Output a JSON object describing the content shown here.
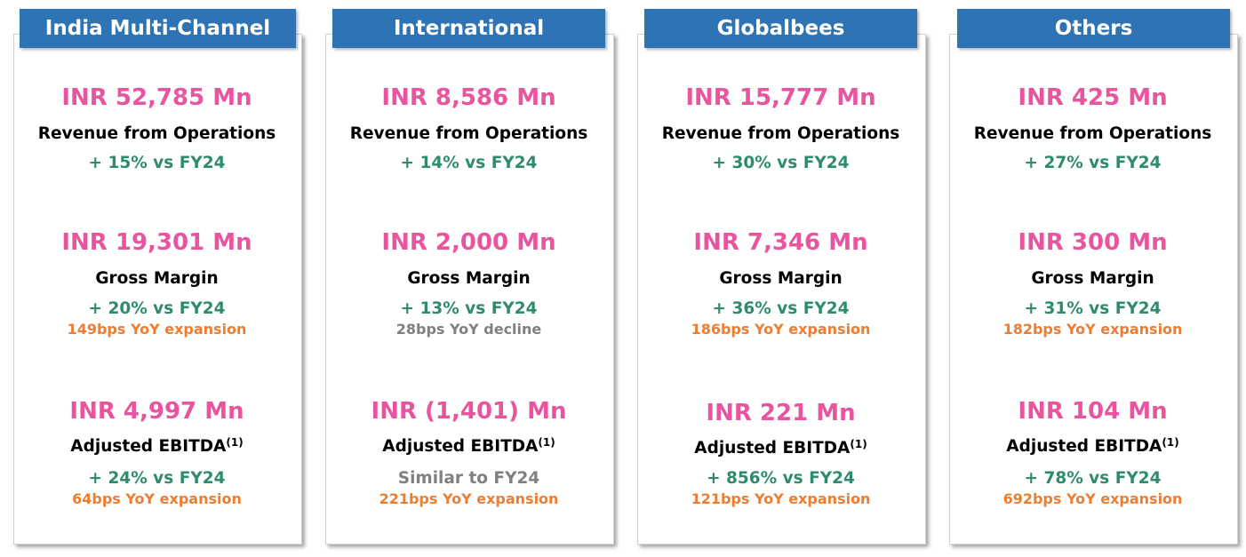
{
  "segments": [
    {
      "title": "India Multi-Channel",
      "revenue": {
        "amount": "INR 52,785 Mn",
        "label": "Revenue from Operations",
        "growth": "+ 15% vs FY24"
      },
      "gross_margin": {
        "amount": "INR 19,301 Mn",
        "label": "Gross Margin",
        "growth": "+ 20% vs FY24",
        "bps": "149bps YoY expansion",
        "bps_direction": "expansion"
      },
      "ebitda": {
        "amount": "INR 4,997 Mn",
        "label": "Adjusted EBITDA",
        "footnote": "(1)",
        "growth": "+ 24% vs FY24",
        "growth_style": "positive",
        "bps": "64bps YoY expansion",
        "bps_direction": "expansion"
      }
    },
    {
      "title": "International",
      "revenue": {
        "amount": "INR 8,586 Mn",
        "label": "Revenue from Operations",
        "growth": "+ 14% vs FY24"
      },
      "gross_margin": {
        "amount": "INR 2,000 Mn",
        "label": "Gross Margin",
        "growth": "+ 13% vs FY24",
        "bps": "28bps YoY decline",
        "bps_direction": "decline"
      },
      "ebitda": {
        "amount": "INR (1,401) Mn",
        "label": "Adjusted EBITDA",
        "footnote": "(1)",
        "growth": "Similar to FY24",
        "growth_style": "neutral",
        "bps": "221bps YoY expansion",
        "bps_direction": "expansion"
      }
    },
    {
      "title": "Globalbees",
      "revenue": {
        "amount": "INR 15,777 Mn",
        "label": "Revenue from Operations",
        "growth": "+ 30% vs FY24"
      },
      "gross_margin": {
        "amount": "INR 7,346 Mn",
        "label": "Gross Margin",
        "growth": "+ 36% vs FY24",
        "bps": "186bps YoY expansion",
        "bps_direction": "expansion"
      },
      "ebitda": {
        "amount": "INR 221 Mn",
        "label": "Adjusted EBITDA",
        "footnote": "(1)",
        "growth": "+ 856% vs FY24",
        "growth_style": "positive",
        "bps": "121bps YoY expansion",
        "bps_direction": "expansion"
      }
    },
    {
      "title": "Others",
      "revenue": {
        "amount": "INR 425 Mn",
        "label": "Revenue from Operations",
        "growth": "+ 27% vs FY24"
      },
      "gross_margin": {
        "amount": "INR 300 Mn",
        "label": "Gross Margin",
        "growth": "+ 31% vs FY24",
        "bps": "182bps YoY expansion",
        "bps_direction": "expansion"
      },
      "ebitda": {
        "amount": "INR 104 Mn",
        "label": "Adjusted EBITDA",
        "footnote": "(1)",
        "growth": "+ 78% vs FY24",
        "growth_style": "positive",
        "bps": "692bps YoY expansion",
        "bps_direction": "expansion"
      }
    }
  ],
  "colors": {
    "header_bg": "#2e74b5",
    "amount": "#e8559e",
    "growth_positive": "#2e8b6f",
    "neutral": "#808080",
    "bps_expansion": "#ed7d31"
  }
}
